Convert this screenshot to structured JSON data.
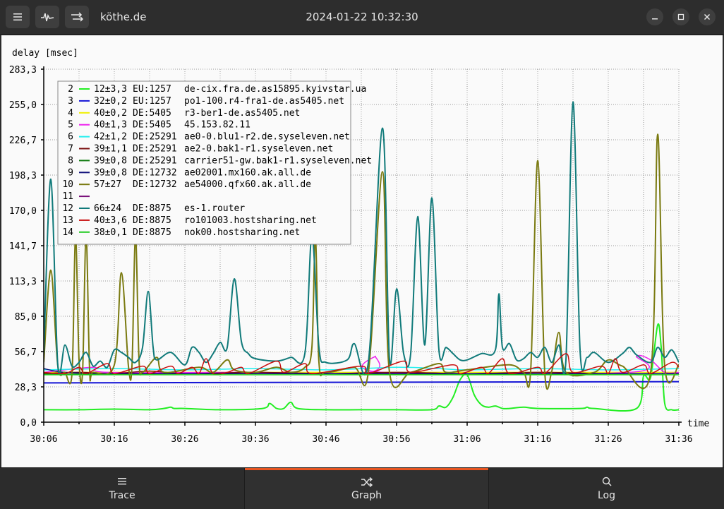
{
  "window": {
    "title": "köthe.de",
    "timestamp": "2024-01-22 10:32:30",
    "buttons": {
      "menu_icon": "hamburger-icon",
      "graph_icon": "pulse-icon",
      "swap_icon": "arrows-swap-icon"
    },
    "controls": [
      "minimize",
      "maximize",
      "close"
    ]
  },
  "tabs": [
    {
      "label": "Trace",
      "icon": "list-icon",
      "active": false
    },
    {
      "label": "Graph",
      "icon": "shuffle-icon",
      "active": true
    },
    {
      "label": "Log",
      "icon": "search-icon",
      "active": false
    }
  ],
  "chart_data": {
    "type": "line",
    "ylabel": "delay [msec]",
    "xlabel": "time",
    "ylim": [
      0,
      283.3
    ],
    "xlim": [
      0,
      90
    ],
    "grid": true,
    "y_ticks": [
      "0,0",
      "28,3",
      "56,7",
      "85,0",
      "113,3",
      "141,7",
      "170,0",
      "198,3",
      "226,7",
      "255,0",
      "283,3"
    ],
    "x_ticks": [
      "30:06",
      "30:16",
      "30:26",
      "30:36",
      "30:46",
      "30:56",
      "31:06",
      "31:16",
      "31:26",
      "31:36"
    ],
    "legend_position": "top-left",
    "series": [
      {
        "hop": "2",
        "color": "#22ee22",
        "stats": "12±3,3",
        "asn": "EU:1257",
        "name": "de-cix.fra.de.as15895.kyivstar.ua"
      },
      {
        "hop": "3",
        "color": "#1515d6",
        "stats": "32±0,2",
        "asn": "EU:1257",
        "name": "po1-100.r4-fra1-de.as5405.net"
      },
      {
        "hop": "4",
        "color": "#f0f000",
        "stats": "40±0,2",
        "asn": "DE:5405",
        "name": "r3-ber1-de.as5405.net"
      },
      {
        "hop": "5",
        "color": "#ee22ee",
        "stats": "40±1,3",
        "asn": "DE:5405",
        "name": "45.153.82.11"
      },
      {
        "hop": "6",
        "color": "#22eeee",
        "stats": "42±1,2",
        "asn": "DE:25291",
        "name": "ae0-0.blu1-r2.de.syseleven.net"
      },
      {
        "hop": "7",
        "color": "#7a1010",
        "stats": "39±1,1",
        "asn": "DE:25291",
        "name": "ae2-0.bak1-r1.syseleven.net"
      },
      {
        "hop": "8",
        "color": "#107a10",
        "stats": "39±0,8",
        "asn": "DE:25291",
        "name": "carrier51-gw.bak1-r1.syseleven.net"
      },
      {
        "hop": "9",
        "color": "#10107a",
        "stats": "39±0,8",
        "asn": "DE:12732",
        "name": "ae02001.mx160.ak.all.de"
      },
      {
        "hop": "10",
        "color": "#7a7a10",
        "stats": "57±27",
        "asn": "DE:12732",
        "name": "ae54000.qfx60.ak.all.de"
      },
      {
        "hop": "11",
        "color": "#7a107a",
        "stats": "",
        "asn": "",
        "name": ""
      },
      {
        "hop": "12",
        "color": "#107a7a",
        "stats": "66±24",
        "asn": "DE:8875",
        "name": "es-1.router"
      },
      {
        "hop": "13",
        "color": "#c81010",
        "stats": "40±3,6",
        "asn": "DE:8875",
        "name": "ro101003.hostsharing.net"
      },
      {
        "hop": "14",
        "color": "#22cc22",
        "stats": "38±0,1",
        "asn": "DE:8875",
        "name": "nok00.hostsharing.net"
      }
    ],
    "lines": [
      {
        "color": "#22ee22",
        "width": 2,
        "points": [
          [
            0,
            10
          ],
          [
            5,
            10
          ],
          [
            10,
            10.5
          ],
          [
            15,
            10
          ],
          [
            17,
            11
          ],
          [
            18,
            12
          ],
          [
            18.5,
            11
          ],
          [
            20,
            11
          ],
          [
            25,
            10
          ],
          [
            31,
            11
          ],
          [
            32,
            15
          ],
          [
            33,
            11
          ],
          [
            34,
            11
          ],
          [
            35,
            16
          ],
          [
            36,
            11
          ],
          [
            40,
            10
          ],
          [
            45,
            10
          ],
          [
            50,
            10
          ],
          [
            55,
            10
          ],
          [
            56,
            13
          ],
          [
            57,
            12
          ],
          [
            58,
            20
          ],
          [
            59,
            34
          ],
          [
            60,
            38
          ],
          [
            61,
            22
          ],
          [
            62,
            14
          ],
          [
            63,
            12
          ],
          [
            64,
            13
          ],
          [
            65,
            11
          ],
          [
            66,
            11
          ],
          [
            68,
            12
          ],
          [
            70,
            11
          ],
          [
            76,
            11
          ],
          [
            77,
            12
          ],
          [
            78,
            11
          ],
          [
            84,
            11
          ],
          [
            85,
            37
          ],
          [
            86,
            36
          ],
          [
            87,
            78
          ],
          [
            87.5,
            60
          ],
          [
            88,
            15
          ],
          [
            89,
            10
          ],
          [
            90,
            10
          ]
        ]
      },
      {
        "color": "#1515d6",
        "width": 2,
        "points": [
          [
            0,
            31.5
          ],
          [
            90,
            32.5
          ]
        ]
      },
      {
        "color": "#f0f000",
        "width": 1.5,
        "points": [
          [
            0,
            40
          ],
          [
            90,
            40
          ]
        ]
      },
      {
        "color": "#ee22ee",
        "width": 1.5,
        "points": [
          [
            0,
            40
          ],
          [
            7,
            44
          ],
          [
            9,
            40
          ],
          [
            28,
            40
          ],
          [
            46,
            40
          ],
          [
            47,
            53
          ],
          [
            48,
            40
          ],
          [
            83,
            40
          ],
          [
            84,
            53
          ],
          [
            86,
            50
          ],
          [
            88,
            40
          ],
          [
            90,
            40
          ]
        ]
      },
      {
        "color": "#22eeee",
        "width": 1.5,
        "points": [
          [
            0,
            42
          ],
          [
            10,
            43
          ],
          [
            20,
            42
          ],
          [
            30,
            43
          ],
          [
            40,
            42
          ],
          [
            50,
            44
          ],
          [
            56,
            43
          ],
          [
            60,
            42
          ],
          [
            70,
            43
          ],
          [
            80,
            42
          ],
          [
            90,
            43
          ]
        ]
      },
      {
        "color": "#7a1010",
        "width": 1.5,
        "points": [
          [
            0,
            39
          ],
          [
            5,
            40
          ],
          [
            10,
            39
          ],
          [
            15,
            41
          ],
          [
            20,
            39
          ],
          [
            30,
            40
          ],
          [
            40,
            39
          ],
          [
            50,
            40
          ],
          [
            60,
            39
          ],
          [
            70,
            40
          ],
          [
            80,
            39
          ],
          [
            90,
            39
          ]
        ]
      },
      {
        "color": "#107a10",
        "width": 1.5,
        "points": [
          [
            0,
            38.5
          ],
          [
            30,
            39
          ],
          [
            60,
            38.5
          ],
          [
            90,
            39
          ]
        ]
      },
      {
        "color": "#10107a",
        "width": 1.5,
        "points": [
          [
            0,
            43
          ],
          [
            3,
            40
          ],
          [
            10,
            39
          ],
          [
            30,
            39
          ],
          [
            60,
            39
          ],
          [
            90,
            39
          ]
        ]
      },
      {
        "color": "#7a7a10",
        "width": 2,
        "points": [
          [
            0,
            48
          ],
          [
            1,
            122
          ],
          [
            2,
            45
          ],
          [
            3,
            40
          ],
          [
            4,
            39
          ],
          [
            4.5,
            150
          ],
          [
            5,
            50
          ],
          [
            5.5,
            40
          ],
          [
            6,
            150
          ],
          [
            6.5,
            42
          ],
          [
            7,
            40
          ],
          [
            10,
            46
          ],
          [
            11,
            120
          ],
          [
            12,
            45
          ],
          [
            12.5,
            45
          ],
          [
            13,
            150
          ],
          [
            13.5,
            50
          ],
          [
            14,
            40
          ],
          [
            16,
            52
          ],
          [
            17,
            40
          ],
          [
            22,
            44
          ],
          [
            24,
            40
          ],
          [
            26,
            50
          ],
          [
            27,
            42
          ],
          [
            30,
            40
          ],
          [
            33,
            44
          ],
          [
            35,
            40
          ],
          [
            37,
            44
          ],
          [
            38,
            60
          ],
          [
            38.5,
            150
          ],
          [
            39,
            48
          ],
          [
            40,
            40
          ],
          [
            44,
            44
          ],
          [
            46,
            40
          ],
          [
            48,
            201
          ],
          [
            49,
            40
          ],
          [
            52,
            40
          ],
          [
            56,
            47
          ],
          [
            57,
            40
          ],
          [
            60,
            42
          ],
          [
            66,
            46
          ],
          [
            68,
            40
          ],
          [
            69,
            41
          ],
          [
            70,
            210
          ],
          [
            71,
            40
          ],
          [
            72,
            41
          ],
          [
            73,
            72
          ],
          [
            74,
            40
          ],
          [
            78,
            40
          ],
          [
            80,
            50
          ],
          [
            82,
            45
          ],
          [
            86,
            40
          ],
          [
            87,
            231
          ],
          [
            88,
            45
          ],
          [
            90,
            46
          ]
        ]
      },
      {
        "color": "#107a7a",
        "width": 2,
        "points": [
          [
            0,
            55
          ],
          [
            1,
            195
          ],
          [
            2,
            45
          ],
          [
            3,
            62
          ],
          [
            4,
            45
          ],
          [
            5,
            48
          ],
          [
            6,
            56
          ],
          [
            7,
            45
          ],
          [
            8,
            49
          ],
          [
            9,
            44
          ],
          [
            10,
            58
          ],
          [
            11,
            56
          ],
          [
            12,
            52
          ],
          [
            13,
            48
          ],
          [
            14,
            60
          ],
          [
            14.8,
            105
          ],
          [
            15.5,
            60
          ],
          [
            16,
            50
          ],
          [
            18,
            56
          ],
          [
            20,
            46
          ],
          [
            21,
            60
          ],
          [
            22,
            56
          ],
          [
            23,
            48
          ],
          [
            24,
            55
          ],
          [
            25,
            64
          ],
          [
            26,
            60
          ],
          [
            27,
            115
          ],
          [
            28,
            65
          ],
          [
            29,
            55
          ],
          [
            30,
            51
          ],
          [
            33,
            49
          ],
          [
            35,
            52
          ],
          [
            37,
            55
          ],
          [
            38,
            150
          ],
          [
            39,
            60
          ],
          [
            40,
            48
          ],
          [
            43,
            50
          ],
          [
            44,
            63
          ],
          [
            46,
            48
          ],
          [
            48,
            236
          ],
          [
            49,
            50
          ],
          [
            50,
            107
          ],
          [
            51,
            55
          ],
          [
            52,
            55
          ],
          [
            53,
            165
          ],
          [
            54,
            62
          ],
          [
            55,
            180
          ],
          [
            56,
            58
          ],
          [
            57,
            60
          ],
          [
            58,
            55
          ],
          [
            59,
            50
          ],
          [
            60,
            50
          ],
          [
            62,
            55
          ],
          [
            64,
            58
          ],
          [
            64.5,
            103
          ],
          [
            65,
            60
          ],
          [
            66,
            63
          ],
          [
            67,
            50
          ],
          [
            68,
            51
          ],
          [
            69,
            56
          ],
          [
            70,
            52
          ],
          [
            71,
            60
          ],
          [
            72,
            48
          ],
          [
            73,
            62
          ],
          [
            74,
            50
          ],
          [
            75,
            257
          ],
          [
            76,
            58
          ],
          [
            77,
            52
          ],
          [
            78,
            56
          ],
          [
            80,
            48
          ],
          [
            82,
            55
          ],
          [
            83,
            60
          ],
          [
            84,
            54
          ],
          [
            86,
            48
          ],
          [
            87,
            60
          ],
          [
            88,
            52
          ],
          [
            89,
            58
          ],
          [
            90,
            48
          ]
        ]
      },
      {
        "color": "#c81010",
        "width": 1.5,
        "points": [
          [
            0,
            40
          ],
          [
            3,
            39
          ],
          [
            5,
            44
          ],
          [
            6,
            39
          ],
          [
            9,
            47
          ],
          [
            10,
            39
          ],
          [
            14,
            45
          ],
          [
            15,
            39
          ],
          [
            18,
            45
          ],
          [
            19,
            39
          ],
          [
            21,
            44
          ],
          [
            22,
            39
          ],
          [
            23,
            51
          ],
          [
            24,
            39
          ],
          [
            26,
            40
          ],
          [
            28,
            44
          ],
          [
            29,
            39
          ],
          [
            33,
            49
          ],
          [
            34,
            40
          ],
          [
            37,
            47
          ],
          [
            38,
            39
          ],
          [
            45,
            45
          ],
          [
            46,
            39
          ],
          [
            51,
            49
          ],
          [
            52,
            40
          ],
          [
            58,
            46
          ],
          [
            59,
            39
          ],
          [
            62,
            44
          ],
          [
            63,
            39
          ],
          [
            65,
            51
          ],
          [
            66,
            39
          ],
          [
            70,
            44
          ],
          [
            71,
            39
          ],
          [
            74,
            55
          ],
          [
            75,
            40
          ],
          [
            79,
            45
          ],
          [
            80,
            39
          ],
          [
            81,
            51
          ],
          [
            82,
            40
          ],
          [
            85,
            46
          ],
          [
            86,
            39
          ],
          [
            89,
            48
          ],
          [
            90,
            44
          ]
        ]
      },
      {
        "color": "#22cc22",
        "width": 1.5,
        "points": [
          [
            0,
            38
          ],
          [
            90,
            38
          ]
        ]
      }
    ]
  }
}
